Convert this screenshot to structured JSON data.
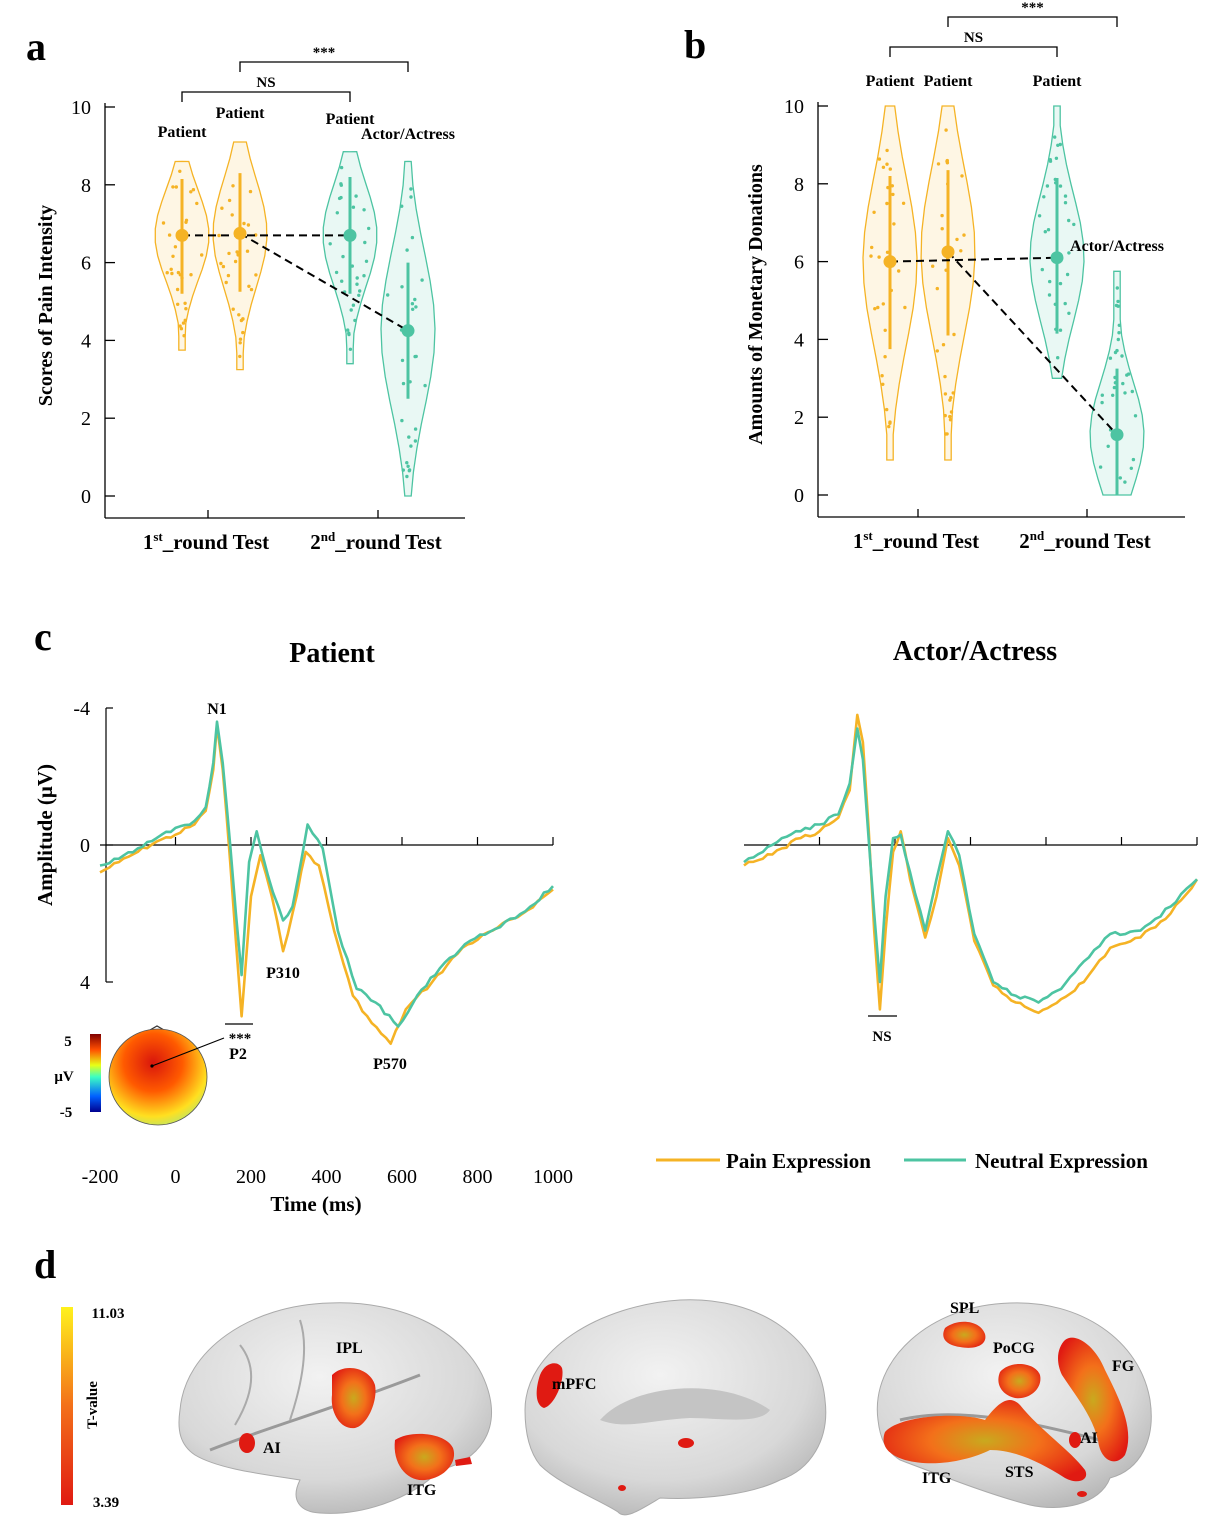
{
  "colors": {
    "pain": "#F5B325",
    "neutral": "#4DC4A2",
    "dash": "#000000",
    "heat_low": "#E01A12",
    "heat_mid": "#F3701A",
    "heat_high": "#FFF21C"
  },
  "panels": {
    "a": "a",
    "b": "b",
    "c": "c",
    "d": "d"
  },
  "chart_data": [
    {
      "id": "a",
      "type": "violin",
      "ylabel": "Scores of Pain Intensity",
      "ylim": [
        0,
        10
      ],
      "yticks": [
        "0",
        "2",
        "4",
        "6",
        "8",
        "10"
      ],
      "xtick_prefix": [
        "1",
        "2"
      ],
      "xtick_sup": [
        "st",
        "nd"
      ],
      "xtick_suffix": "_round Test",
      "groups": [
        {
          "label": "Patient",
          "color": "pain",
          "mean": 6.7,
          "sd_low": 5.2,
          "sd_high": 8.15,
          "min": 3.75,
          "max": 8.6
        },
        {
          "label": "Patient",
          "color": "pain",
          "mean": 6.75,
          "sd_low": 5.25,
          "sd_high": 8.3,
          "min": 3.25,
          "max": 9.1
        },
        {
          "label": "Patient",
          "color": "neutral",
          "mean": 6.7,
          "sd_low": 5.2,
          "sd_high": 8.2,
          "min": 3.4,
          "max": 8.85
        },
        {
          "label": "Actor/Actress",
          "color": "neutral",
          "mean": 4.25,
          "sd_low": 2.5,
          "sd_high": 6.0,
          "min": 0,
          "max": 8.6
        }
      ],
      "brackets": [
        {
          "label": "NS",
          "from": 0,
          "to": 2
        },
        {
          "label": "***",
          "from": 1,
          "to": 3
        }
      ]
    },
    {
      "id": "b",
      "type": "violin",
      "ylabel": "Amounts of Monetary Donations",
      "ylim": [
        0,
        10
      ],
      "yticks": [
        "0",
        "2",
        "4",
        "6",
        "8",
        "10"
      ],
      "xtick_prefix": [
        "1",
        "2"
      ],
      "xtick_sup": [
        "st",
        "nd"
      ],
      "xtick_suffix": "_round Test",
      "groups": [
        {
          "label": "Patient",
          "color": "pain",
          "mean": 6.0,
          "sd_low": 3.75,
          "sd_high": 8.2,
          "min": 0.9,
          "max": 10
        },
        {
          "label": "Patient",
          "color": "pain",
          "mean": 6.25,
          "sd_low": 4.1,
          "sd_high": 8.35,
          "min": 0.9,
          "max": 10
        },
        {
          "label": "Patient",
          "color": "neutral",
          "mean": 6.1,
          "sd_low": 4.15,
          "sd_high": 8.15,
          "min": 3.0,
          "max": 10
        },
        {
          "label": "Actor/Actress",
          "color": "neutral",
          "mean": 1.55,
          "sd_low": 0.0,
          "sd_high": 3.25,
          "min": 0,
          "max": 5.75
        }
      ],
      "brackets": [
        {
          "label": "NS",
          "from": 0,
          "to": 2
        },
        {
          "label": "***",
          "from": 1,
          "to": 3
        }
      ]
    },
    {
      "id": "c",
      "type": "line",
      "ylabel": "Amplitude (μV)",
      "xlabel": "Time (ms)",
      "xlim": [
        -200,
        1000
      ],
      "ylim": [
        -4,
        4
      ],
      "xticks": [
        "-200",
        "0",
        "200",
        "400",
        "600",
        "800",
        "1000"
      ],
      "yticks": [
        "-4",
        "0",
        "4"
      ],
      "panels": [
        {
          "title": "Patient",
          "pain": [
            [
              -200,
              0.8
            ],
            [
              -150,
              0.5
            ],
            [
              -100,
              0.2
            ],
            [
              -50,
              -0.1
            ],
            [
              0,
              -0.3
            ],
            [
              50,
              -0.6
            ],
            [
              80,
              -1.0
            ],
            [
              100,
              -2.2
            ],
            [
              110,
              -3.5
            ],
            [
              125,
              -2.2
            ],
            [
              145,
              0.5
            ],
            [
              160,
              2.8
            ],
            [
              175,
              5.0
            ],
            [
              200,
              1.5
            ],
            [
              225,
              0.3
            ],
            [
              255,
              1.5
            ],
            [
              285,
              3.1
            ],
            [
              310,
              2.0
            ],
            [
              345,
              0.2
            ],
            [
              380,
              0.6
            ],
            [
              420,
              2.5
            ],
            [
              470,
              4.4
            ],
            [
              520,
              5.2
            ],
            [
              570,
              5.8
            ],
            [
              610,
              4.8
            ],
            [
              680,
              4.0
            ],
            [
              760,
              3.0
            ],
            [
              840,
              2.5
            ],
            [
              920,
              2.0
            ],
            [
              1000,
              1.3
            ]
          ],
          "neutral": [
            [
              -200,
              0.6
            ],
            [
              -150,
              0.4
            ],
            [
              -100,
              0.1
            ],
            [
              -50,
              -0.2
            ],
            [
              0,
              -0.5
            ],
            [
              50,
              -0.7
            ],
            [
              80,
              -1.1
            ],
            [
              100,
              -2.4
            ],
            [
              110,
              -3.6
            ],
            [
              125,
              -2.4
            ],
            [
              145,
              0.0
            ],
            [
              160,
              2.0
            ],
            [
              175,
              3.8
            ],
            [
              195,
              0.5
            ],
            [
              215,
              -0.4
            ],
            [
              245,
              0.9
            ],
            [
              285,
              2.2
            ],
            [
              310,
              1.8
            ],
            [
              350,
              -0.6
            ],
            [
              390,
              0.1
            ],
            [
              430,
              2.5
            ],
            [
              480,
              4.2
            ],
            [
              530,
              4.6
            ],
            [
              590,
              5.3
            ],
            [
              640,
              4.4
            ],
            [
              700,
              3.6
            ],
            [
              780,
              2.8
            ],
            [
              860,
              2.4
            ],
            [
              940,
              1.8
            ],
            [
              1000,
              1.2
            ]
          ],
          "labels": [
            "N1",
            "P2",
            "P310",
            "P570"
          ],
          "sig": "***",
          "topo": {
            "max": "5",
            "min": "-5",
            "unit": "μV"
          }
        },
        {
          "title": "Actor/Actress",
          "pain": [
            [
              -200,
              0.6
            ],
            [
              -150,
              0.4
            ],
            [
              -100,
              0.1
            ],
            [
              -50,
              -0.2
            ],
            [
              0,
              -0.4
            ],
            [
              50,
              -0.8
            ],
            [
              80,
              -1.6
            ],
            [
              100,
              -3.8
            ],
            [
              115,
              -3.0
            ],
            [
              130,
              -0.5
            ],
            [
              145,
              2.5
            ],
            [
              160,
              4.8
            ],
            [
              175,
              2.5
            ],
            [
              195,
              0.2
            ],
            [
              215,
              -0.4
            ],
            [
              240,
              1.0
            ],
            [
              280,
              2.7
            ],
            [
              310,
              1.5
            ],
            [
              340,
              -0.2
            ],
            [
              370,
              0.6
            ],
            [
              410,
              2.8
            ],
            [
              460,
              4.1
            ],
            [
              520,
              4.6
            ],
            [
              580,
              4.9
            ],
            [
              640,
              4.5
            ],
            [
              700,
              4.0
            ],
            [
              770,
              3.0
            ],
            [
              850,
              2.7
            ],
            [
              930,
              2.0
            ],
            [
              1000,
              1.0
            ]
          ],
          "neutral": [
            [
              -200,
              0.5
            ],
            [
              -150,
              0.2
            ],
            [
              -100,
              -0.2
            ],
            [
              -50,
              -0.4
            ],
            [
              0,
              -0.6
            ],
            [
              50,
              -0.9
            ],
            [
              80,
              -1.8
            ],
            [
              100,
              -3.4
            ],
            [
              115,
              -2.5
            ],
            [
              130,
              -0.2
            ],
            [
              145,
              2.0
            ],
            [
              160,
              4.0
            ],
            [
              175,
              1.5
            ],
            [
              195,
              -0.2
            ],
            [
              215,
              -0.3
            ],
            [
              240,
              0.8
            ],
            [
              280,
              2.5
            ],
            [
              310,
              1.0
            ],
            [
              340,
              -0.4
            ],
            [
              370,
              0.3
            ],
            [
              410,
              2.6
            ],
            [
              460,
              4.0
            ],
            [
              520,
              4.4
            ],
            [
              580,
              4.6
            ],
            [
              640,
              4.2
            ],
            [
              700,
              3.4
            ],
            [
              770,
              2.6
            ],
            [
              850,
              2.5
            ],
            [
              930,
              1.8
            ],
            [
              1000,
              1.0
            ]
          ],
          "sig": "NS"
        }
      ],
      "legend": [
        "Pain Expression",
        "Neutral Expression"
      ]
    },
    {
      "id": "d",
      "type": "brain-map",
      "colorbar": {
        "label": "T-value",
        "max": "11.03",
        "min": "3.39"
      },
      "regions": [
        [
          "IPL",
          "AI",
          "ITG"
        ],
        [
          "mPFC"
        ],
        [
          "SPL",
          "PoCG",
          "FG",
          "AI",
          "ITG",
          "STS"
        ]
      ]
    }
  ]
}
